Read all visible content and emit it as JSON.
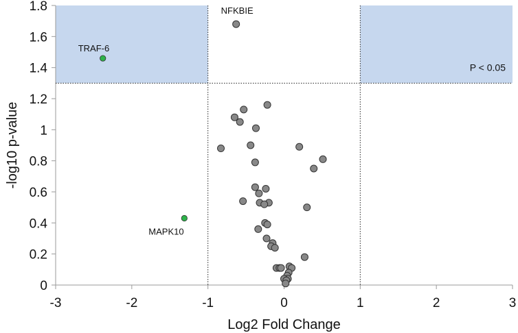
{
  "chart_data": {
    "type": "scatter",
    "title": "",
    "xlabel": "Log2 Fold Change",
    "ylabel": "-log10 p-value",
    "xlim": [
      -3,
      3
    ],
    "ylim": [
      0,
      1.8
    ],
    "x_ticks": [
      -3,
      -2,
      -1,
      0,
      1,
      2,
      3
    ],
    "x_tick_labels": [
      "-3",
      "-2",
      "-1",
      "0",
      "1",
      "2",
      "3"
    ],
    "y_ticks": [
      0,
      0.2,
      0.4,
      0.6,
      0.8,
      1.0,
      1.2,
      1.4,
      1.6,
      1.8
    ],
    "y_tick_labels": [
      "0",
      "0.2",
      "0.4",
      "0.6",
      "0.8",
      "1",
      "1.2",
      "1.4",
      "1.6",
      "1.8"
    ],
    "grid": false,
    "thresholds": {
      "fold_change": [
        -1,
        1
      ],
      "p_value_neglog10": 1.3,
      "label": "P < 0.05"
    },
    "colors": {
      "default_point": "#888888",
      "highlight_point": "#2db34a",
      "significant_region": "#c6d7ee",
      "point_stroke": "#333333"
    },
    "highlighted_points": [
      {
        "x": -2.38,
        "y": 1.46,
        "label": "TRAF-6"
      },
      {
        "x": -1.31,
        "y": 0.43,
        "label": "MAPK10"
      }
    ],
    "annotated_points": [
      {
        "x": -0.63,
        "y": 1.68,
        "label": "NFKBIE"
      }
    ],
    "points": [
      {
        "x": -0.22,
        "y": 1.16
      },
      {
        "x": -0.53,
        "y": 1.13
      },
      {
        "x": -0.65,
        "y": 1.08
      },
      {
        "x": -0.58,
        "y": 1.05
      },
      {
        "x": -0.37,
        "y": 1.01
      },
      {
        "x": -0.44,
        "y": 0.9
      },
      {
        "x": -0.83,
        "y": 0.88
      },
      {
        "x": 0.2,
        "y": 0.89
      },
      {
        "x": 0.51,
        "y": 0.81
      },
      {
        "x": 0.39,
        "y": 0.75
      },
      {
        "x": -0.38,
        "y": 0.79
      },
      {
        "x": -0.38,
        "y": 0.63
      },
      {
        "x": -0.24,
        "y": 0.62
      },
      {
        "x": -0.33,
        "y": 0.59
      },
      {
        "x": -0.54,
        "y": 0.54
      },
      {
        "x": -0.32,
        "y": 0.53
      },
      {
        "x": -0.2,
        "y": 0.53
      },
      {
        "x": -0.26,
        "y": 0.52
      },
      {
        "x": 0.3,
        "y": 0.5
      },
      {
        "x": -0.25,
        "y": 0.4
      },
      {
        "x": -0.22,
        "y": 0.39
      },
      {
        "x": -0.34,
        "y": 0.36
      },
      {
        "x": -0.23,
        "y": 0.3
      },
      {
        "x": -0.15,
        "y": 0.27
      },
      {
        "x": -0.17,
        "y": 0.25
      },
      {
        "x": -0.12,
        "y": 0.24
      },
      {
        "x": 0.27,
        "y": 0.18
      },
      {
        "x": -0.1,
        "y": 0.11
      },
      {
        "x": -0.06,
        "y": 0.11
      },
      {
        "x": -0.04,
        "y": 0.11
      },
      {
        "x": 0.07,
        "y": 0.12
      },
      {
        "x": 0.1,
        "y": 0.11
      },
      {
        "x": 0.06,
        "y": 0.08
      },
      {
        "x": 0.04,
        "y": 0.06
      },
      {
        "x": 0.05,
        "y": 0.04
      },
      {
        "x": 0.0,
        "y": 0.04
      },
      {
        "x": 0.03,
        "y": 0.03
      },
      {
        "x": 0.02,
        "y": 0.01
      }
    ]
  }
}
